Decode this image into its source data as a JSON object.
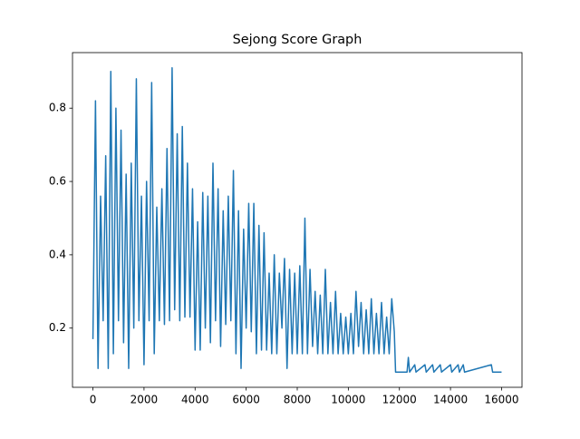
{
  "chart_data": {
    "type": "line",
    "title": "Sejong Score Graph",
    "x": [
      0,
      100,
      200,
      300,
      400,
      500,
      600,
      700,
      800,
      900,
      1000,
      1100,
      1200,
      1300,
      1400,
      1500,
      1600,
      1700,
      1800,
      1900,
      2000,
      2100,
      2200,
      2300,
      2400,
      2500,
      2600,
      2700,
      2800,
      2900,
      3000,
      3100,
      3200,
      3300,
      3400,
      3500,
      3600,
      3700,
      3800,
      3900,
      4000,
      4100,
      4200,
      4300,
      4400,
      4500,
      4600,
      4700,
      4800,
      4900,
      5000,
      5100,
      5200,
      5300,
      5400,
      5500,
      5600,
      5700,
      5800,
      5900,
      6000,
      6100,
      6200,
      6300,
      6400,
      6500,
      6600,
      6700,
      6800,
      6900,
      7000,
      7100,
      7200,
      7300,
      7400,
      7500,
      7600,
      7700,
      7800,
      7900,
      8000,
      8100,
      8200,
      8300,
      8400,
      8500,
      8600,
      8700,
      8800,
      8900,
      9000,
      9100,
      9200,
      9300,
      9400,
      9500,
      9600,
      9700,
      9800,
      9900,
      10000,
      10100,
      10200,
      10300,
      10400,
      10500,
      10600,
      10700,
      10800,
      10900,
      11000,
      11100,
      11200,
      11300,
      11400,
      11500,
      11600,
      11700,
      11800,
      11850,
      12300,
      12350,
      12400,
      12600,
      12650,
      13000,
      13050,
      13300,
      13350,
      13600,
      13650,
      14000,
      14050,
      14300,
      14350,
      14500,
      14550,
      15600,
      15650,
      16000
    ],
    "series": [
      {
        "color": "#1f77b4",
        "values": [
          0.17,
          0.82,
          0.09,
          0.56,
          0.22,
          0.67,
          0.09,
          0.9,
          0.13,
          0.8,
          0.22,
          0.74,
          0.16,
          0.62,
          0.09,
          0.65,
          0.2,
          0.88,
          0.22,
          0.56,
          0.1,
          0.6,
          0.22,
          0.87,
          0.13,
          0.53,
          0.22,
          0.58,
          0.21,
          0.69,
          0.22,
          0.91,
          0.25,
          0.73,
          0.22,
          0.75,
          0.23,
          0.65,
          0.23,
          0.58,
          0.14,
          0.49,
          0.14,
          0.57,
          0.2,
          0.56,
          0.16,
          0.65,
          0.22,
          0.58,
          0.15,
          0.52,
          0.21,
          0.56,
          0.22,
          0.63,
          0.13,
          0.52,
          0.09,
          0.47,
          0.2,
          0.54,
          0.19,
          0.54,
          0.13,
          0.48,
          0.14,
          0.46,
          0.14,
          0.35,
          0.13,
          0.4,
          0.13,
          0.35,
          0.2,
          0.39,
          0.09,
          0.36,
          0.13,
          0.35,
          0.13,
          0.37,
          0.13,
          0.5,
          0.13,
          0.36,
          0.15,
          0.3,
          0.13,
          0.29,
          0.13,
          0.36,
          0.13,
          0.27,
          0.13,
          0.3,
          0.13,
          0.24,
          0.13,
          0.23,
          0.13,
          0.24,
          0.13,
          0.3,
          0.15,
          0.27,
          0.13,
          0.25,
          0.13,
          0.28,
          0.13,
          0.24,
          0.13,
          0.27,
          0.13,
          0.23,
          0.13,
          0.28,
          0.19,
          0.08,
          0.08,
          0.12,
          0.08,
          0.1,
          0.08,
          0.1,
          0.08,
          0.1,
          0.08,
          0.1,
          0.08,
          0.1,
          0.08,
          0.1,
          0.08,
          0.1,
          0.08,
          0.1,
          0.08,
          0.08
        ]
      }
    ],
    "xlim": [
      -800,
      16800
    ],
    "ylim": [
      0.0385,
      0.9515
    ],
    "xticks": [
      0,
      2000,
      4000,
      6000,
      8000,
      10000,
      12000,
      14000,
      16000
    ],
    "yticks": [
      0.2,
      0.4,
      0.6,
      0.8
    ]
  }
}
